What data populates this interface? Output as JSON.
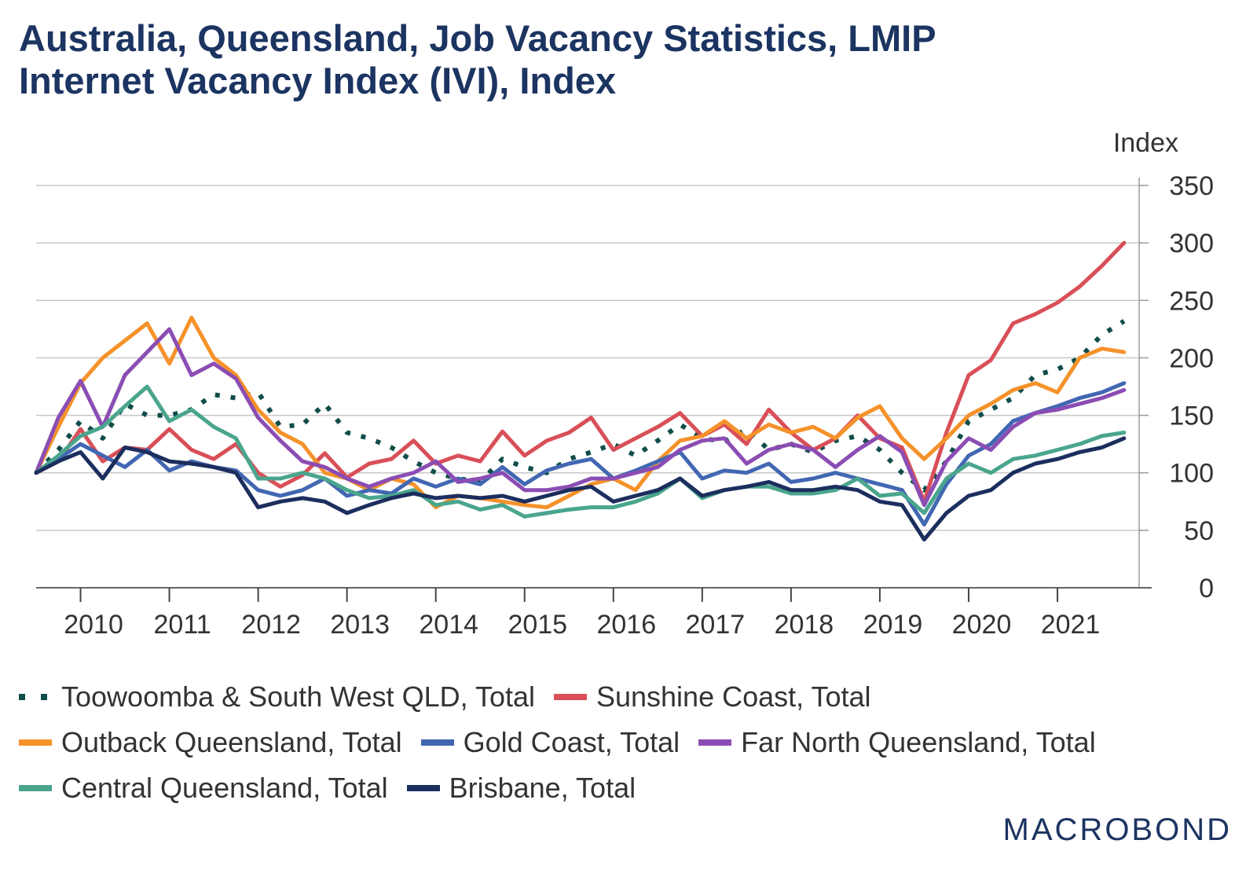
{
  "chart_data": {
    "type": "line",
    "title": "Australia, Queensland, Job Vacancy Statistics, LMIP Internet Vacancy Index (IVI), Index",
    "title_lines": [
      "Australia, Queensland, Job Vacancy Statistics, LMIP",
      "Internet Vacancy Index (IVI), Index"
    ],
    "ylabel": "Index",
    "xlabel": "",
    "ylim": [
      0,
      350
    ],
    "yticks": [
      0,
      50,
      100,
      150,
      200,
      250,
      300,
      350
    ],
    "xlim": [
      2009.5,
      2021.92
    ],
    "xticks": [
      "2010",
      "2011",
      "2012",
      "2013",
      "2014",
      "2015",
      "2016",
      "2017",
      "2018",
      "2019",
      "2020",
      "2021"
    ],
    "grid": true,
    "legend_position": "bottom",
    "series": [
      {
        "name": "Toowoomba & South West QLD, Total",
        "color": "#0f4d4a",
        "style": "dotted",
        "x": [
          2009.5,
          2009.75,
          2010.0,
          2010.25,
          2010.5,
          2010.75,
          2011.0,
          2011.25,
          2011.5,
          2011.75,
          2012.0,
          2012.25,
          2012.5,
          2012.75,
          2013.0,
          2013.25,
          2013.5,
          2013.75,
          2014.0,
          2014.25,
          2014.5,
          2014.75,
          2015.0,
          2015.25,
          2015.5,
          2015.75,
          2016.0,
          2016.25,
          2016.5,
          2016.75,
          2017.0,
          2017.25,
          2017.5,
          2017.75,
          2018.0,
          2018.25,
          2018.5,
          2018.75,
          2019.0,
          2019.25,
          2019.5,
          2019.75,
          2020.0,
          2020.25,
          2020.5,
          2020.75,
          2021.0,
          2021.25,
          2021.5,
          2021.75
        ],
        "values": [
          100,
          120,
          145,
          130,
          160,
          150,
          150,
          155,
          168,
          165,
          170,
          140,
          142,
          160,
          135,
          130,
          122,
          110,
          100,
          95,
          92,
          112,
          105,
          100,
          112,
          118,
          125,
          115,
          128,
          142,
          130,
          127,
          138,
          120,
          125,
          118,
          128,
          132,
          120,
          100,
          85,
          110,
          145,
          155,
          165,
          185,
          190,
          200,
          220,
          232
        ]
      },
      {
        "name": "Sunshine Coast, Total",
        "color": "#d94f58",
        "style": "solid",
        "x": [
          2009.5,
          2009.75,
          2010.0,
          2010.25,
          2010.5,
          2010.75,
          2011.0,
          2011.25,
          2011.5,
          2011.75,
          2012.0,
          2012.25,
          2012.5,
          2012.75,
          2013.0,
          2013.25,
          2013.5,
          2013.75,
          2014.0,
          2014.25,
          2014.5,
          2014.75,
          2015.0,
          2015.25,
          2015.5,
          2015.75,
          2016.0,
          2016.25,
          2016.5,
          2016.75,
          2017.0,
          2017.25,
          2017.5,
          2017.75,
          2018.0,
          2018.25,
          2018.5,
          2018.75,
          2019.0,
          2019.25,
          2019.5,
          2019.75,
          2020.0,
          2020.25,
          2020.5,
          2020.75,
          2021.0,
          2021.25,
          2021.5,
          2021.75
        ],
        "values": [
          100,
          110,
          138,
          110,
          122,
          120,
          138,
          120,
          112,
          125,
          100,
          88,
          98,
          117,
          96,
          108,
          112,
          128,
          108,
          115,
          110,
          136,
          115,
          128,
          135,
          148,
          120,
          130,
          140,
          152,
          132,
          142,
          125,
          155,
          135,
          120,
          130,
          150,
          130,
          122,
          75,
          135,
          185,
          198,
          230,
          238,
          248,
          262,
          280,
          300
        ]
      },
      {
        "name": "Outback Queensland, Total",
        "color": "#f5922a",
        "style": "solid",
        "x": [
          2009.5,
          2009.75,
          2010.0,
          2010.25,
          2010.5,
          2010.75,
          2011.0,
          2011.25,
          2011.5,
          2011.75,
          2012.0,
          2012.25,
          2012.5,
          2012.75,
          2013.0,
          2013.25,
          2013.5,
          2013.75,
          2014.0,
          2014.25,
          2014.5,
          2014.75,
          2015.0,
          2015.25,
          2015.5,
          2015.75,
          2016.0,
          2016.25,
          2016.5,
          2016.75,
          2017.0,
          2017.25,
          2017.5,
          2017.75,
          2018.0,
          2018.25,
          2018.5,
          2018.75,
          2019.0,
          2019.25,
          2019.5,
          2019.75,
          2020.0,
          2020.25,
          2020.5,
          2020.75,
          2021.0,
          2021.25,
          2021.5,
          2021.75
        ],
        "values": [
          100,
          140,
          178,
          200,
          215,
          230,
          195,
          235,
          200,
          185,
          155,
          135,
          125,
          100,
          95,
          85,
          95,
          90,
          70,
          80,
          78,
          75,
          72,
          70,
          80,
          90,
          95,
          85,
          110,
          128,
          132,
          145,
          130,
          142,
          135,
          140,
          130,
          148,
          158,
          130,
          112,
          130,
          150,
          160,
          172,
          178,
          170,
          200,
          208,
          205
        ]
      },
      {
        "name": "Gold Coast, Total",
        "color": "#4267b2",
        "style": "solid",
        "x": [
          2009.5,
          2009.75,
          2010.0,
          2010.25,
          2010.5,
          2010.75,
          2011.0,
          2011.25,
          2011.5,
          2011.75,
          2012.0,
          2012.25,
          2012.5,
          2012.75,
          2013.0,
          2013.25,
          2013.5,
          2013.75,
          2014.0,
          2014.25,
          2014.5,
          2014.75,
          2015.0,
          2015.25,
          2015.5,
          2015.75,
          2016.0,
          2016.25,
          2016.5,
          2016.75,
          2017.0,
          2017.25,
          2017.5,
          2017.75,
          2018.0,
          2018.25,
          2018.5,
          2018.75,
          2019.0,
          2019.25,
          2019.5,
          2019.75,
          2020.0,
          2020.25,
          2020.5,
          2020.75,
          2021.0,
          2021.25,
          2021.5,
          2021.75
        ],
        "values": [
          100,
          112,
          125,
          115,
          105,
          120,
          102,
          110,
          105,
          102,
          85,
          80,
          85,
          95,
          80,
          85,
          82,
          95,
          88,
          95,
          90,
          105,
          90,
          102,
          108,
          112,
          95,
          102,
          110,
          118,
          95,
          102,
          100,
          108,
          92,
          95,
          100,
          95,
          90,
          85,
          55,
          90,
          115,
          125,
          145,
          152,
          158,
          165,
          170,
          178
        ]
      },
      {
        "name": "Far North Queensland, Total",
        "color": "#8b4db3",
        "style": "solid",
        "x": [
          2009.5,
          2009.75,
          2010.0,
          2010.25,
          2010.5,
          2010.75,
          2011.0,
          2011.25,
          2011.5,
          2011.75,
          2012.0,
          2012.25,
          2012.5,
          2012.75,
          2013.0,
          2013.25,
          2013.5,
          2013.75,
          2014.0,
          2014.25,
          2014.5,
          2014.75,
          2015.0,
          2015.25,
          2015.5,
          2015.75,
          2016.0,
          2016.25,
          2016.5,
          2016.75,
          2017.0,
          2017.25,
          2017.5,
          2017.75,
          2018.0,
          2018.25,
          2018.5,
          2018.75,
          2019.0,
          2019.25,
          2019.5,
          2019.75,
          2020.0,
          2020.25,
          2020.5,
          2020.75,
          2021.0,
          2021.25,
          2021.5,
          2021.75
        ],
        "values": [
          100,
          148,
          180,
          140,
          185,
          205,
          225,
          185,
          195,
          182,
          148,
          128,
          110,
          105,
          95,
          88,
          95,
          100,
          110,
          92,
          95,
          100,
          85,
          85,
          88,
          95,
          95,
          100,
          105,
          120,
          128,
          130,
          108,
          120,
          125,
          120,
          105,
          120,
          132,
          118,
          72,
          110,
          130,
          120,
          140,
          152,
          155,
          160,
          165,
          172
        ]
      },
      {
        "name": "Central Queensland, Total",
        "color": "#4aa58d",
        "style": "solid",
        "x": [
          2009.5,
          2009.75,
          2010.0,
          2010.25,
          2010.5,
          2010.75,
          2011.0,
          2011.25,
          2011.5,
          2011.75,
          2012.0,
          2012.25,
          2012.5,
          2012.75,
          2013.0,
          2013.25,
          2013.5,
          2013.75,
          2014.0,
          2014.25,
          2014.5,
          2014.75,
          2015.0,
          2015.25,
          2015.5,
          2015.75,
          2016.0,
          2016.25,
          2016.5,
          2016.75,
          2017.0,
          2017.25,
          2017.5,
          2017.75,
          2018.0,
          2018.25,
          2018.5,
          2018.75,
          2019.0,
          2019.25,
          2019.5,
          2019.75,
          2020.0,
          2020.25,
          2020.5,
          2020.75,
          2021.0,
          2021.25,
          2021.5,
          2021.75
        ],
        "values": [
          100,
          115,
          132,
          140,
          158,
          175,
          145,
          155,
          140,
          130,
          95,
          95,
          100,
          95,
          85,
          78,
          80,
          85,
          72,
          75,
          68,
          72,
          62,
          65,
          68,
          70,
          70,
          75,
          82,
          95,
          78,
          85,
          88,
          88,
          82,
          82,
          85,
          95,
          80,
          82,
          65,
          95,
          108,
          100,
          112,
          115,
          120,
          125,
          132,
          135
        ]
      },
      {
        "name": "Brisbane, Total",
        "color": "#1c2e5e",
        "style": "solid",
        "x": [
          2009.5,
          2009.75,
          2010.0,
          2010.25,
          2010.5,
          2010.75,
          2011.0,
          2011.25,
          2011.5,
          2011.75,
          2012.0,
          2012.25,
          2012.5,
          2012.75,
          2013.0,
          2013.25,
          2013.5,
          2013.75,
          2014.0,
          2014.25,
          2014.5,
          2014.75,
          2015.0,
          2015.25,
          2015.5,
          2015.75,
          2016.0,
          2016.25,
          2016.5,
          2016.75,
          2017.0,
          2017.25,
          2017.5,
          2017.75,
          2018.0,
          2018.25,
          2018.5,
          2018.75,
          2019.0,
          2019.25,
          2019.5,
          2019.75,
          2020.0,
          2020.25,
          2020.5,
          2020.75,
          2021.0,
          2021.25,
          2021.5,
          2021.75
        ],
        "values": [
          100,
          110,
          118,
          95,
          122,
          118,
          110,
          108,
          105,
          100,
          70,
          75,
          78,
          75,
          65,
          72,
          78,
          82,
          78,
          80,
          78,
          80,
          75,
          80,
          85,
          88,
          75,
          80,
          85,
          95,
          80,
          85,
          88,
          92,
          85,
          85,
          88,
          85,
          75,
          72,
          42,
          65,
          80,
          85,
          100,
          108,
          112,
          118,
          122,
          130
        ]
      }
    ]
  },
  "brand": "MACROBOND"
}
